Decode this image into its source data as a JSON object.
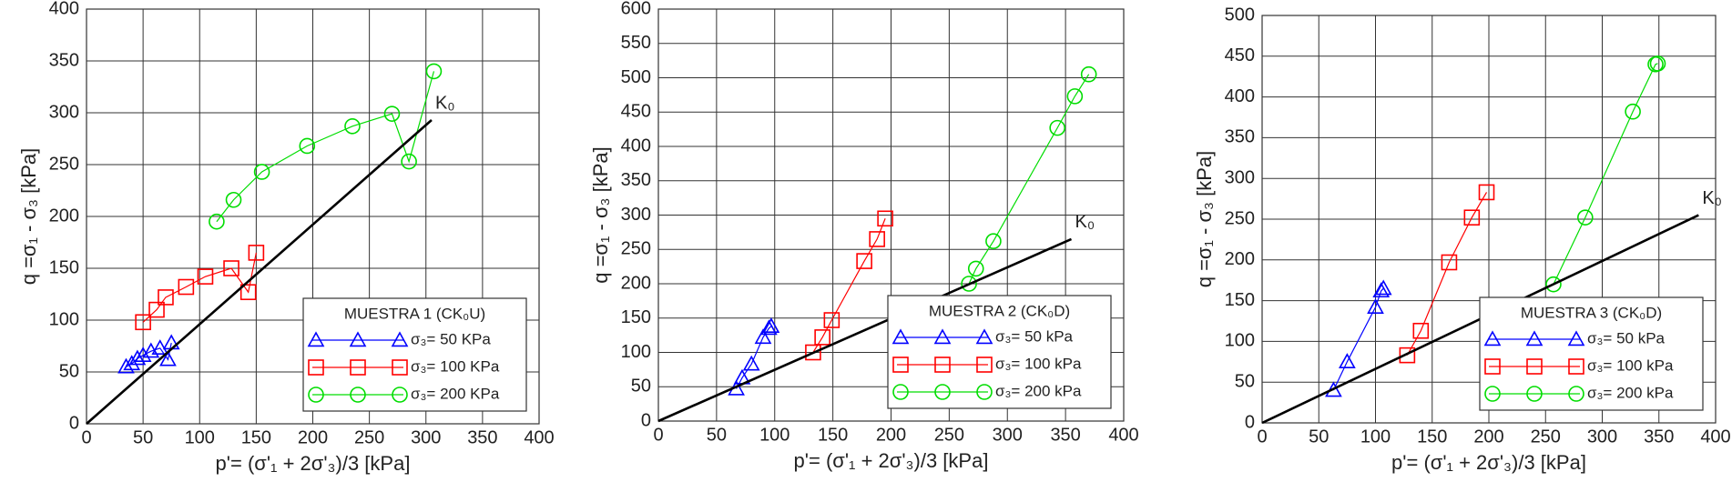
{
  "chart_data": [
    {
      "type": "line",
      "xlabel": "p'= (σ'₁ + 2σ'₃)/3 [kPa]",
      "ylabel": "q =σ₁ - σ₃ [kPa]",
      "legend_title": "MUESTRA 1 (CK₀U)",
      "legend": "lower right",
      "grid": true,
      "xlim": [
        0,
        400
      ],
      "xticks": [
        0,
        50,
        100,
        150,
        200,
        250,
        300,
        350,
        400
      ],
      "ylim": [
        0,
        400
      ],
      "yticks": [
        0,
        50,
        100,
        150,
        200,
        250,
        300,
        350,
        400
      ],
      "series": [
        {
          "name": "σ₃= 50 KPa",
          "color": "#0000ff",
          "marker": "triangle",
          "x": [
            35,
            40,
            45,
            50,
            57,
            65,
            72,
            75
          ],
          "values": [
            55,
            58,
            63,
            66,
            70,
            73,
            62,
            78
          ]
        },
        {
          "name": "σ₃= 100 KPa",
          "color": "#ff0000",
          "marker": "square",
          "x": [
            50,
            62,
            70,
            88,
            105,
            128,
            143,
            150
          ],
          "values": [
            98,
            110,
            122,
            132,
            142,
            150,
            127,
            165
          ]
        },
        {
          "name": "σ₃= 200 KPa",
          "color": "#00dd00",
          "marker": "circle",
          "x": [
            115,
            130,
            155,
            195,
            235,
            270,
            285,
            307
          ],
          "values": [
            195,
            216,
            243,
            268,
            287,
            299,
            253,
            340
          ]
        },
        {
          "name": "K₀",
          "color": "#000000",
          "marker": "none",
          "x": [
            0,
            305
          ],
          "values": [
            0,
            293
          ]
        }
      ]
    },
    {
      "type": "line",
      "xlabel": "p'= (σ'₁ + 2σ'₃)/3 [kPa]",
      "ylabel": "q =σ₁ - σ₃ [kPa]",
      "legend_title": "MUESTRA 2 (CK₀D)",
      "legend": "lower right",
      "grid": true,
      "xlim": [
        0,
        400
      ],
      "xticks": [
        0,
        50,
        100,
        150,
        200,
        250,
        300,
        350,
        400
      ],
      "ylim": [
        0,
        600
      ],
      "yticks": [
        0,
        50,
        100,
        150,
        200,
        250,
        300,
        350,
        400,
        450,
        500,
        550,
        600
      ],
      "series": [
        {
          "name": "σ₃= 50 kPa",
          "color": "#0000ff",
          "marker": "triangle",
          "x": [
            67,
            72,
            80,
            90,
            95,
            97
          ],
          "values": [
            47,
            63,
            83,
            122,
            135,
            138
          ]
        },
        {
          "name": "σ₃= 100 kPa",
          "color": "#ff0000",
          "marker": "square",
          "x": [
            133,
            141,
            149,
            177,
            188,
            195
          ],
          "values": [
            100,
            122,
            147,
            233,
            265,
            295
          ]
        },
        {
          "name": "σ₃= 200 kPa",
          "color": "#00dd00",
          "marker": "circle",
          "x": [
            267,
            273,
            288,
            343,
            358,
            370
          ],
          "values": [
            200,
            222,
            262,
            427,
            473,
            505
          ]
        },
        {
          "name": "K₀",
          "color": "#000000",
          "marker": "none",
          "x": [
            0,
            355
          ],
          "values": [
            0,
            265
          ]
        }
      ]
    },
    {
      "type": "line",
      "xlabel": "p'= (σ'₁ + 2σ'₃)/3 [kPa]",
      "ylabel": "q =σ₁ - σ₃ [kPa]",
      "legend_title": "MUESTRA 3 (CK₀D)",
      "legend": "lower right",
      "grid": true,
      "xlim": [
        0,
        400
      ],
      "xticks": [
        0,
        50,
        100,
        150,
        200,
        250,
        300,
        350,
        400
      ],
      "ylim": [
        0,
        500
      ],
      "yticks": [
        0,
        50,
        100,
        150,
        200,
        250,
        300,
        350,
        400,
        450,
        500
      ],
      "series": [
        {
          "name": "σ₃= 50 kPa",
          "color": "#0000ff",
          "marker": "triangle",
          "x": [
            63,
            75,
            100,
            105,
            107
          ],
          "values": [
            40,
            75,
            142,
            162,
            165
          ]
        },
        {
          "name": "σ₃= 100 kPa",
          "color": "#ff0000",
          "marker": "square",
          "x": [
            128,
            140,
            165,
            185,
            198
          ],
          "values": [
            83,
            113,
            197,
            252,
            283
          ]
        },
        {
          "name": "σ₃= 200 kPa",
          "color": "#00dd00",
          "marker": "circle",
          "x": [
            257,
            285,
            327,
            347,
            349
          ],
          "values": [
            170,
            252,
            382,
            440,
            441
          ]
        },
        {
          "name": "K₀",
          "color": "#000000",
          "marker": "none",
          "x": [
            0,
            385
          ],
          "values": [
            0,
            255
          ]
        }
      ]
    }
  ]
}
